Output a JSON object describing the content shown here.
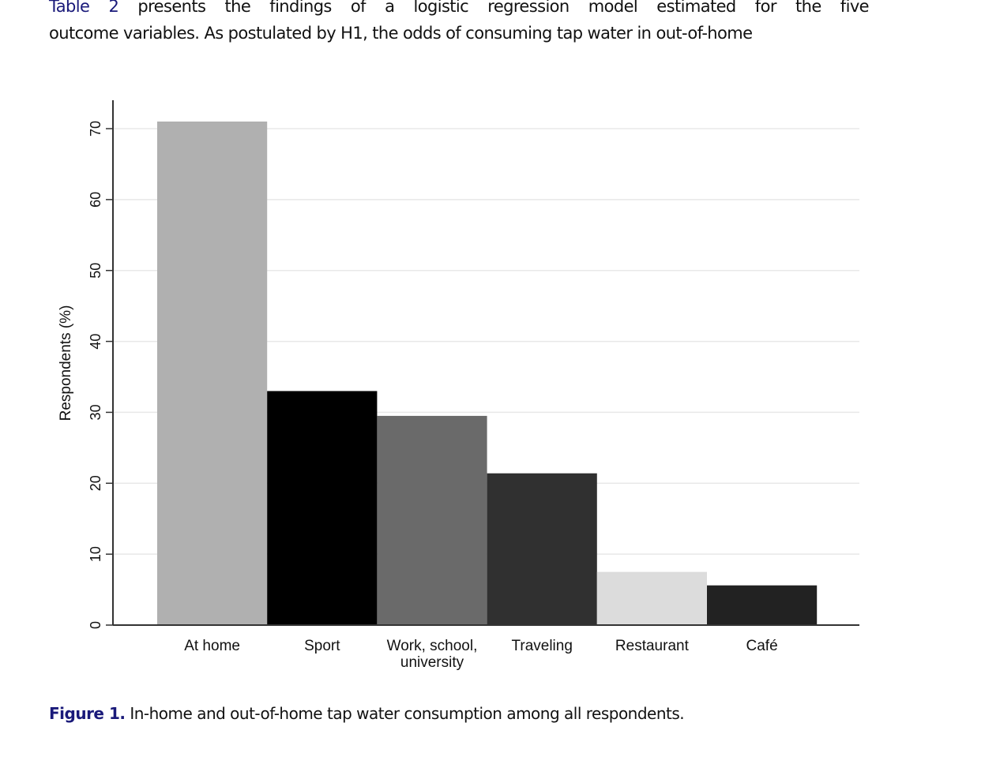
{
  "text": {
    "line1_ref": "Table 2",
    "line1_rest": " presents the findings of a logistic regression model estimated for the five",
    "line2": "outcome variables. As postulated by H1, the odds of consuming tap water in out-of-home"
  },
  "caption": {
    "label": "Figure 1.",
    "text": " In-home and out-of-home tap water consumption among all respondents."
  },
  "chart_data": {
    "type": "bar",
    "title": "",
    "xlabel": "",
    "ylabel": "Respondents (%)",
    "ylim": [
      0,
      74
    ],
    "yticks": [
      0,
      10,
      20,
      30,
      40,
      50,
      60,
      70
    ],
    "grid": true,
    "categories": [
      "At home",
      "Sport",
      "Work, school, university",
      "Traveling",
      "Restaurant",
      "Café"
    ],
    "category_lines": [
      [
        "At home"
      ],
      [
        "Sport"
      ],
      [
        "Work, school,",
        "university"
      ],
      [
        "Traveling"
      ],
      [
        "Restaurant"
      ],
      [
        "Café"
      ]
    ],
    "values": [
      71.0,
      33.0,
      29.5,
      21.4,
      7.5,
      5.6
    ],
    "colors": [
      "#b0b0b0",
      "#000000",
      "#6a6a6a",
      "#303030",
      "#dcdcdc",
      "#222222"
    ]
  }
}
